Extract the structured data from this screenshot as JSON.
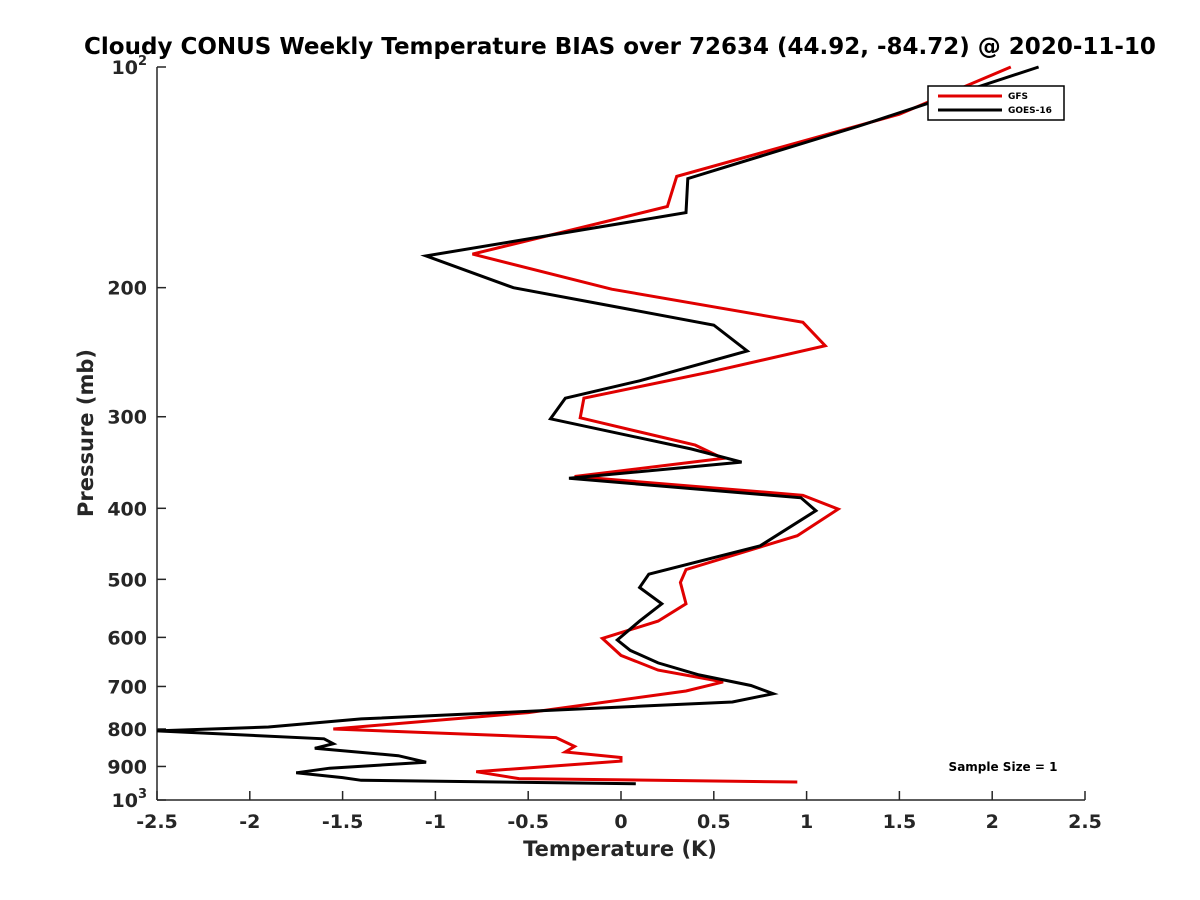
{
  "chart_data": {
    "type": "line",
    "title": "Cloudy CONUS Weekly Temperature BIAS over 72634 (44.92, -84.72) @ 2020-11-10",
    "xlabel": "Temperature (K)",
    "ylabel": "Pressure (mb)",
    "xlim": [
      -2.5,
      2.5
    ],
    "ylim": [
      100,
      1000
    ],
    "y_scale": "log",
    "y_reversed": true,
    "x_ticks": [
      -2.5,
      -2,
      -1.5,
      -1,
      -0.5,
      0,
      0.5,
      1,
      1.5,
      2,
      2.5
    ],
    "x_tick_labels": [
      "-2.5",
      "-2",
      "-1.5",
      "-1",
      "-0.5",
      "0",
      "0.5",
      "1",
      "1.5",
      "2",
      "2.5"
    ],
    "y_ticks": [
      {
        "value": 100,
        "base": "10",
        "exp": "2"
      },
      {
        "value": 200,
        "label": "200"
      },
      {
        "value": 300,
        "label": "300"
      },
      {
        "value": 400,
        "label": "400"
      },
      {
        "value": 500,
        "label": "500"
      },
      {
        "value": 600,
        "label": "600"
      },
      {
        "value": 700,
        "label": "700"
      },
      {
        "value": 800,
        "label": "800"
      },
      {
        "value": 900,
        "label": "900"
      },
      {
        "value": 1000,
        "base": "10",
        "exp": "3"
      }
    ],
    "grid": false,
    "legend_position": "top-right",
    "series": [
      {
        "name": "GFS",
        "color": "#e00000",
        "points": [
          [
            2.1,
            100
          ],
          [
            1.5,
            116
          ],
          [
            0.3,
            141
          ],
          [
            0.25,
            155
          ],
          [
            -0.8,
            180
          ],
          [
            -0.05,
            201
          ],
          [
            0.98,
            223
          ],
          [
            1.1,
            240
          ],
          [
            0.5,
            260
          ],
          [
            -0.2,
            283
          ],
          [
            -0.22,
            301
          ],
          [
            0.4,
            328
          ],
          [
            0.55,
            342
          ],
          [
            -0.25,
            362
          ],
          [
            0.98,
            384
          ],
          [
            1.17,
            401
          ],
          [
            0.95,
            436
          ],
          [
            0.35,
            485
          ],
          [
            0.32,
            505
          ],
          [
            0.35,
            540
          ],
          [
            0.2,
            570
          ],
          [
            -0.1,
            602
          ],
          [
            0.0,
            635
          ],
          [
            0.2,
            665
          ],
          [
            0.55,
            690
          ],
          [
            0.35,
            710
          ],
          [
            -0.5,
            760
          ],
          [
            -1.55,
            800
          ],
          [
            -0.35,
            822
          ],
          [
            -0.25,
            845
          ],
          [
            -0.3,
            860
          ],
          [
            0.0,
            875
          ],
          [
            0.0,
            885
          ],
          [
            -0.78,
            915
          ],
          [
            -0.55,
            935
          ],
          [
            0.95,
            945
          ]
        ]
      },
      {
        "name": "GOES-16",
        "color": "#000000",
        "points": [
          [
            2.25,
            100
          ],
          [
            1.3,
            120
          ],
          [
            0.36,
            142
          ],
          [
            0.35,
            158
          ],
          [
            -1.05,
            181
          ],
          [
            -0.58,
            200
          ],
          [
            0.5,
            225
          ],
          [
            0.68,
            244
          ],
          [
            0.1,
            268
          ],
          [
            -0.3,
            283
          ],
          [
            -0.38,
            302
          ],
          [
            0.38,
            332
          ],
          [
            0.65,
            346
          ],
          [
            -0.28,
            364
          ],
          [
            0.97,
            387
          ],
          [
            1.05,
            403
          ],
          [
            0.75,
            450
          ],
          [
            0.15,
            492
          ],
          [
            0.1,
            513
          ],
          [
            0.22,
            540
          ],
          [
            0.1,
            570
          ],
          [
            -0.02,
            605
          ],
          [
            0.05,
            625
          ],
          [
            0.2,
            650
          ],
          [
            0.42,
            675
          ],
          [
            0.7,
            698
          ],
          [
            0.82,
            716
          ],
          [
            0.6,
            735
          ],
          [
            -1.4,
            775
          ],
          [
            -1.9,
            795
          ],
          [
            -2.5,
            805
          ],
          [
            -1.6,
            825
          ],
          [
            -1.55,
            838
          ],
          [
            -1.65,
            850
          ],
          [
            -1.2,
            870
          ],
          [
            -1.05,
            888
          ],
          [
            -1.57,
            905
          ],
          [
            -1.75,
            918
          ],
          [
            -1.5,
            932
          ],
          [
            -1.4,
            940
          ],
          [
            0.08,
            950
          ]
        ]
      }
    ],
    "annotation": "Sample Size = 1"
  }
}
